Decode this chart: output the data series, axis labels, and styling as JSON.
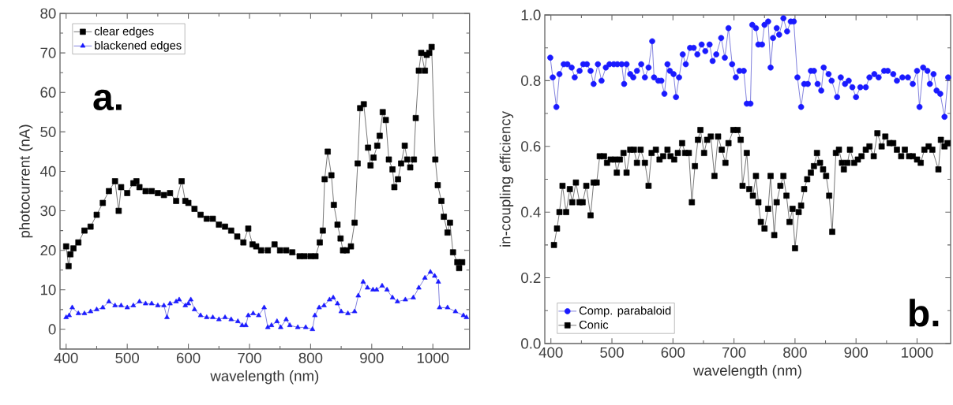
{
  "chart_data": [
    {
      "type": "line",
      "xlabel": "wavelength (nm)",
      "ylabel": "photocurrent (nA)",
      "xlim": [
        390,
        1060
      ],
      "ylim": [
        -5,
        80
      ],
      "xticks": [
        400,
        500,
        600,
        700,
        800,
        900,
        1000
      ],
      "yticks": [
        0,
        10,
        20,
        30,
        40,
        50,
        60,
        70,
        80
      ],
      "legend": "top left",
      "line_style": "solid",
      "annotations": [
        "a."
      ],
      "series": [
        {
          "name": "clear edges",
          "color": "#000000",
          "marker": "square",
          "x": [
            400,
            404,
            407,
            412,
            420,
            430,
            440,
            450,
            460,
            470,
            480,
            486,
            490,
            500,
            510,
            515,
            520,
            530,
            540,
            550,
            560,
            570,
            580,
            589,
            595,
            600,
            610,
            620,
            630,
            640,
            650,
            660,
            670,
            680,
            690,
            698,
            705,
            711,
            719,
            730,
            741,
            750,
            760,
            770,
            782,
            790,
            800,
            808,
            815,
            820,
            823,
            828,
            834,
            838,
            844,
            849,
            853,
            859,
            866,
            872,
            877,
            881,
            887,
            894,
            898,
            903,
            909,
            913,
            918,
            923,
            928,
            934,
            937,
            943,
            948,
            954,
            958,
            963,
            969,
            972,
            977,
            981,
            987,
            990,
            994,
            998,
            1004,
            1008,
            1014,
            1018,
            1024,
            1028,
            1033,
            1040,
            1043,
            1048
          ],
          "values": [
            21,
            16,
            19,
            20.5,
            22,
            25,
            26,
            29,
            32,
            35,
            37.5,
            30,
            36,
            34.5,
            37,
            37.5,
            36,
            35,
            35,
            34.5,
            34,
            34.5,
            32.5,
            37.5,
            32.5,
            32,
            30.5,
            29,
            28,
            28,
            26.5,
            26,
            25,
            23.5,
            22,
            25.5,
            21.5,
            21,
            20,
            20,
            21.5,
            20,
            20,
            19.5,
            18.5,
            18.5,
            18.5,
            18.5,
            22,
            25,
            38,
            45,
            39,
            31.5,
            26.5,
            23,
            20,
            20,
            21,
            27,
            42,
            56,
            57,
            46,
            41.5,
            43.5,
            46.5,
            49,
            55,
            53,
            43,
            40.5,
            36,
            38,
            42,
            46.5,
            43,
            41,
            43,
            53.5,
            65.5,
            70,
            65.5,
            69.5,
            70,
            71.5,
            43,
            36.5,
            32.5,
            28.5,
            24.5,
            27,
            19.5,
            17,
            15.5,
            17
          ]
        },
        {
          "name": "blackened edges",
          "color": "#1a1aff",
          "marker": "triangle",
          "x": [
            400,
            405,
            410,
            420,
            430,
            440,
            450,
            460,
            470,
            480,
            490,
            500,
            510,
            520,
            530,
            540,
            550,
            560,
            565,
            570,
            580,
            585,
            595,
            600,
            604,
            610,
            620,
            630,
            640,
            650,
            660,
            670,
            681,
            688,
            694,
            698,
            706,
            715,
            724,
            730,
            736,
            745,
            751,
            760,
            766,
            779,
            792,
            803,
            807,
            814,
            822,
            831,
            837,
            844,
            850,
            861,
            872,
            878,
            886,
            893,
            902,
            908,
            917,
            925,
            934,
            942,
            955,
            968,
            977,
            987,
            996,
            1003,
            1009,
            1011,
            1024,
            1037,
            1050,
            1055
          ],
          "values": [
            3,
            3.5,
            5.5,
            4,
            4,
            4.5,
            5,
            5.5,
            7,
            6,
            6,
            5.5,
            6,
            7,
            6.5,
            6.5,
            6,
            6,
            3,
            6.5,
            7,
            7.5,
            6,
            6.5,
            7.5,
            5,
            3.5,
            3,
            3,
            2.5,
            3,
            2.5,
            2,
            1,
            1,
            3.5,
            4,
            3.5,
            5.5,
            0.5,
            1,
            2,
            0.5,
            2.5,
            1,
            0.5,
            0.5,
            0,
            3.5,
            5.5,
            6,
            7.5,
            8,
            6.5,
            4.5,
            4,
            4.5,
            8.5,
            12,
            10.5,
            10,
            10,
            11,
            10,
            8,
            7,
            7.5,
            8,
            10.5,
            13,
            14.5,
            13.5,
            12,
            5.5,
            5.5,
            4.5,
            3.5,
            3
          ]
        }
      ]
    },
    {
      "type": "line",
      "xlabel": "wavelength (nm)",
      "ylabel": "in-coupling efficiency",
      "xlim": [
        390,
        1055
      ],
      "ylim": [
        0,
        1
      ],
      "xticks": [
        400,
        500,
        600,
        700,
        800,
        900,
        1000
      ],
      "yticks": [
        {
          "value": 0,
          "label": "0.0"
        },
        {
          "value": 0.2,
          "label": "0.2"
        },
        {
          "value": 0.4,
          "label": "0.4"
        },
        {
          "value": 0.6,
          "label": "0.6"
        },
        {
          "value": 0.8,
          "label": "0.8"
        },
        {
          "value": 1,
          "label": "1.0"
        }
      ],
      "legend": "bottom left",
      "line_style": "solid",
      "annotations": [
        "b."
      ],
      "series": [
        {
          "name": "Comp. parabaloid",
          "color": "#1a1aff",
          "marker": "circle",
          "x": [
            399,
            403,
            409,
            414,
            421,
            427,
            434,
            439,
            447,
            453,
            459,
            465,
            470,
            477,
            483,
            490,
            496,
            503,
            509,
            516,
            520,
            524,
            530,
            535,
            541,
            548,
            554,
            560,
            566,
            569,
            576,
            581,
            586,
            591,
            595,
            601,
            605,
            610,
            616,
            621,
            628,
            634,
            640,
            647,
            653,
            660,
            665,
            671,
            679,
            685,
            691,
            697,
            703,
            709,
            716,
            721,
            727,
            730,
            736,
            740,
            746,
            750,
            756,
            760,
            764,
            770,
            774,
            781,
            787,
            793,
            798,
            804,
            810,
            815,
            821,
            826,
            831,
            837,
            843,
            847,
            855,
            860,
            869,
            875,
            882,
            888,
            894,
            900,
            907,
            916,
            922,
            930,
            937,
            946,
            952,
            961,
            967,
            976,
            985,
            993,
            1000,
            1004,
            1010,
            1017,
            1021,
            1027,
            1032,
            1038,
            1045,
            1051
          ],
          "values": [
            0.87,
            0.81,
            0.72,
            0.82,
            0.85,
            0.85,
            0.84,
            0.81,
            0.83,
            0.85,
            0.85,
            0.83,
            0.79,
            0.85,
            0.8,
            0.84,
            0.85,
            0.85,
            0.85,
            0.85,
            0.79,
            0.85,
            0.82,
            0.81,
            0.83,
            0.85,
            0.81,
            0.84,
            0.92,
            0.81,
            0.8,
            0.8,
            0.76,
            0.85,
            0.83,
            0.82,
            0.75,
            0.81,
            0.88,
            0.85,
            0.9,
            0.9,
            0.88,
            0.91,
            0.89,
            0.91,
            0.86,
            0.88,
            0.93,
            0.87,
            0.96,
            0.85,
            0.81,
            0.83,
            0.83,
            0.73,
            0.73,
            0.97,
            0.96,
            0.91,
            0.91,
            0.97,
            0.98,
            0.84,
            0.93,
            0.96,
            0.94,
            0.99,
            0.95,
            0.98,
            0.98,
            0.81,
            0.72,
            0.79,
            0.79,
            0.83,
            0.83,
            0.79,
            0.77,
            0.84,
            0.82,
            0.8,
            0.75,
            0.81,
            0.79,
            0.8,
            0.78,
            0.75,
            0.78,
            0.78,
            0.81,
            0.82,
            0.81,
            0.83,
            0.83,
            0.82,
            0.8,
            0.81,
            0.81,
            0.79,
            0.83,
            0.72,
            0.84,
            0.83,
            0.79,
            0.82,
            0.77,
            0.76,
            0.69,
            0.81
          ]
        },
        {
          "name": "Conic",
          "color": "#000000",
          "marker": "square",
          "x": [
            405,
            410,
            414,
            419,
            425,
            431,
            435,
            441,
            447,
            452,
            458,
            465,
            470,
            475,
            480,
            487,
            492,
            498,
            505,
            508,
            513,
            519,
            524,
            530,
            536,
            541,
            547,
            554,
            560,
            565,
            572,
            578,
            584,
            591,
            596,
            602,
            608,
            615,
            620,
            626,
            631,
            636,
            641,
            645,
            651,
            656,
            662,
            668,
            674,
            680,
            686,
            691,
            699,
            706,
            711,
            714,
            721,
            725,
            731,
            736,
            740,
            744,
            750,
            756,
            760,
            766,
            770,
            776,
            781,
            786,
            791,
            796,
            800,
            806,
            810,
            815,
            820,
            826,
            831,
            836,
            841,
            846,
            851,
            856,
            861,
            867,
            872,
            877,
            880,
            886,
            890,
            897,
            903,
            909,
            916,
            922,
            929,
            935,
            942,
            948,
            955,
            961,
            967,
            974,
            980,
            987,
            993,
            1000,
            1006,
            1012,
            1019,
            1025,
            1035,
            1039,
            1045,
            1050
          ],
          "values": [
            0.3,
            0.35,
            0.4,
            0.48,
            0.4,
            0.47,
            0.43,
            0.49,
            0.43,
            0.43,
            0.48,
            0.39,
            0.49,
            0.49,
            0.57,
            0.57,
            0.55,
            0.56,
            0.56,
            0.52,
            0.56,
            0.58,
            0.52,
            0.59,
            0.59,
            0.55,
            0.59,
            0.55,
            0.48,
            0.58,
            0.59,
            0.56,
            0.57,
            0.59,
            0.57,
            0.56,
            0.58,
            0.61,
            0.58,
            0.58,
            0.43,
            0.54,
            0.62,
            0.65,
            0.58,
            0.62,
            0.63,
            0.51,
            0.63,
            0.59,
            0.55,
            0.61,
            0.65,
            0.65,
            0.62,
            0.48,
            0.58,
            0.47,
            0.45,
            0.51,
            0.43,
            0.37,
            0.35,
            0.41,
            0.51,
            0.33,
            0.43,
            0.48,
            0.51,
            0.45,
            0.37,
            0.41,
            0.29,
            0.4,
            0.42,
            0.47,
            0.5,
            0.52,
            0.54,
            0.58,
            0.55,
            0.53,
            0.51,
            0.45,
            0.34,
            0.58,
            0.59,
            0.55,
            0.53,
            0.55,
            0.59,
            0.55,
            0.56,
            0.57,
            0.59,
            0.6,
            0.57,
            0.64,
            0.6,
            0.63,
            0.61,
            0.61,
            0.59,
            0.57,
            0.59,
            0.57,
            0.57,
            0.56,
            0.55,
            0.59,
            0.6,
            0.59,
            0.53,
            0.62,
            0.6,
            0.61
          ]
        }
      ]
    }
  ]
}
